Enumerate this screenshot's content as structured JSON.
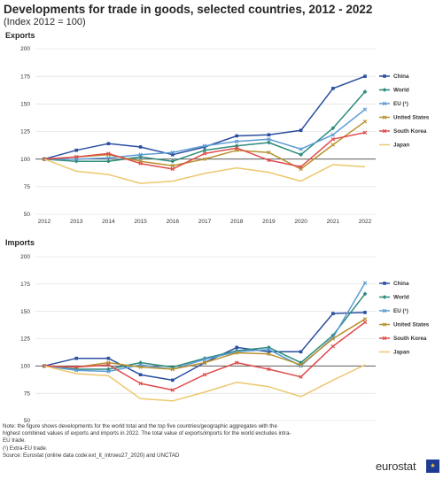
{
  "title": "Developments for trade in goods, selected countries, 2012 - 2022",
  "subtitle": "(Index 2012 = 100)",
  "notes": [
    "Note: the figure shows developments for the world total and the top five countries/geographic aggregates with the highest combined values of exports and imports in 2022. The total value of exports/imports for the world excludes intra-EU trade.",
    "(¹) Extra-EU trade.",
    "Source: Eurostat (online data code:ext_lt_introeu27_2020) and UNCTAD"
  ],
  "logo": {
    "text": "eurostat",
    "flag_symbol": "★"
  },
  "chart_data": [
    {
      "type": "line",
      "title": "Exports",
      "x": [
        "2012",
        "2013",
        "2014",
        "2015",
        "2016",
        "2017",
        "2018",
        "2019",
        "2020",
        "2021",
        "2022"
      ],
      "ylim": [
        50,
        200
      ],
      "yticks": [
        50,
        75,
        100,
        125,
        150,
        175,
        200
      ],
      "legend_position": "right",
      "series": [
        {
          "name": "China",
          "color": "#2a4ea0",
          "marker": "square",
          "values": [
            100,
            108,
            114,
            111,
            104,
            111,
            121,
            122,
            126,
            164,
            175
          ]
        },
        {
          "name": "World",
          "color": "#2e8b7b",
          "marker": "diamond",
          "values": [
            100,
            98,
            98,
            102,
            98,
            108,
            112,
            115,
            104,
            128,
            161
          ]
        },
        {
          "name": "EU (¹)",
          "color": "#5b9bd5",
          "marker": "x",
          "values": [
            100,
            100,
            101,
            104,
            106,
            112,
            116,
            118,
            109,
            122,
            145
          ]
        },
        {
          "name": "United States",
          "color": "#b8922f",
          "marker": "x",
          "values": [
            100,
            102,
            104,
            98,
            94,
            100,
            108,
            106,
            91,
            113,
            134
          ]
        },
        {
          "name": "South Korea",
          "color": "#e04b4b",
          "marker": "x",
          "values": [
            100,
            102,
            105,
            96,
            91,
            105,
            110,
            99,
            93,
            118,
            124
          ]
        },
        {
          "name": "Japan",
          "color": "#ecc86d",
          "marker": "none",
          "values": [
            100,
            89,
            86,
            78,
            80,
            87,
            92,
            88,
            80,
            95,
            93
          ]
        }
      ]
    },
    {
      "type": "line",
      "title": "Imports",
      "x": [
        "2012",
        "2013",
        "2014",
        "2015",
        "2016",
        "2017",
        "2018",
        "2019",
        "2020",
        "2021",
        "2022"
      ],
      "ylim": [
        50,
        200
      ],
      "yticks": [
        50,
        75,
        100,
        125,
        150,
        175,
        200
      ],
      "legend_position": "right",
      "series": [
        {
          "name": "China",
          "color": "#2a4ea0",
          "marker": "square",
          "values": [
            100,
            107,
            107,
            92,
            87,
            103,
            117,
            113,
            113,
            148,
            149
          ]
        },
        {
          "name": "World",
          "color": "#2e8b7b",
          "marker": "diamond",
          "values": [
            100,
            97,
            97,
            103,
            99,
            107,
            114,
            117,
            103,
            128,
            166
          ]
        },
        {
          "name": "EU (¹)",
          "color": "#5b9bd5",
          "marker": "x",
          "values": [
            100,
            96,
            95,
            101,
            97,
            106,
            113,
            115,
            100,
            126,
            176
          ]
        },
        {
          "name": "United States",
          "color": "#b8922f",
          "marker": "x",
          "values": [
            100,
            99,
            103,
            99,
            97,
            103,
            112,
            111,
            101,
            125,
            143
          ]
        },
        {
          "name": "South Korea",
          "color": "#e04b4b",
          "marker": "x",
          "values": [
            100,
            99,
            101,
            84,
            78,
            92,
            103,
            97,
            90,
            118,
            140
          ]
        },
        {
          "name": "Japan",
          "color": "#ecc86d",
          "marker": "none",
          "values": [
            100,
            93,
            91,
            70,
            68,
            76,
            85,
            81,
            72,
            87,
            101
          ]
        }
      ]
    }
  ]
}
